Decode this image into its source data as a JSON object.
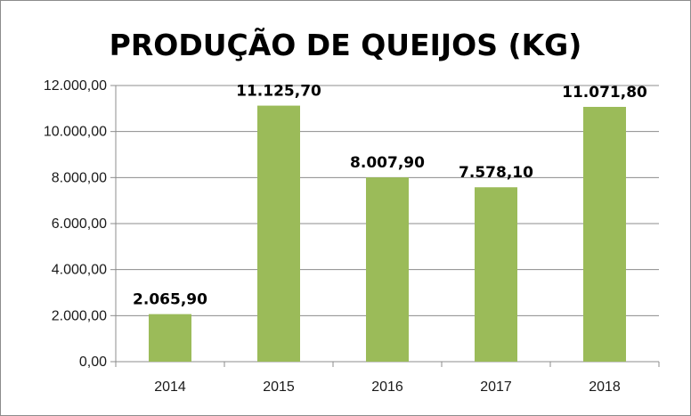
{
  "chart_data": {
    "type": "bar",
    "title": "PRODUÇÃO DE QUEIJOS (KG)",
    "xlabel": "",
    "ylabel": "",
    "categories": [
      "2014",
      "2015",
      "2016",
      "2017",
      "2018"
    ],
    "values": [
      2065.9,
      11125.7,
      8007.9,
      7578.1,
      11071.8
    ],
    "data_labels": [
      "2.065,90",
      "11.125,70",
      "8.007,90",
      "7.578,10",
      "11.071,80"
    ],
    "ylim": [
      0,
      12000
    ],
    "yticks": [
      0,
      2000,
      4000,
      6000,
      8000,
      10000,
      12000
    ],
    "ytick_labels": [
      "0,00",
      "2.000,00",
      "4.000,00",
      "6.000,00",
      "8.000,00",
      "10.000,00",
      "12.000,00"
    ],
    "grid": true,
    "legend": "none",
    "colors": {
      "bar": "#9bbb59",
      "grid": "#8c8c8c",
      "axis": "#8c8c8c"
    }
  }
}
